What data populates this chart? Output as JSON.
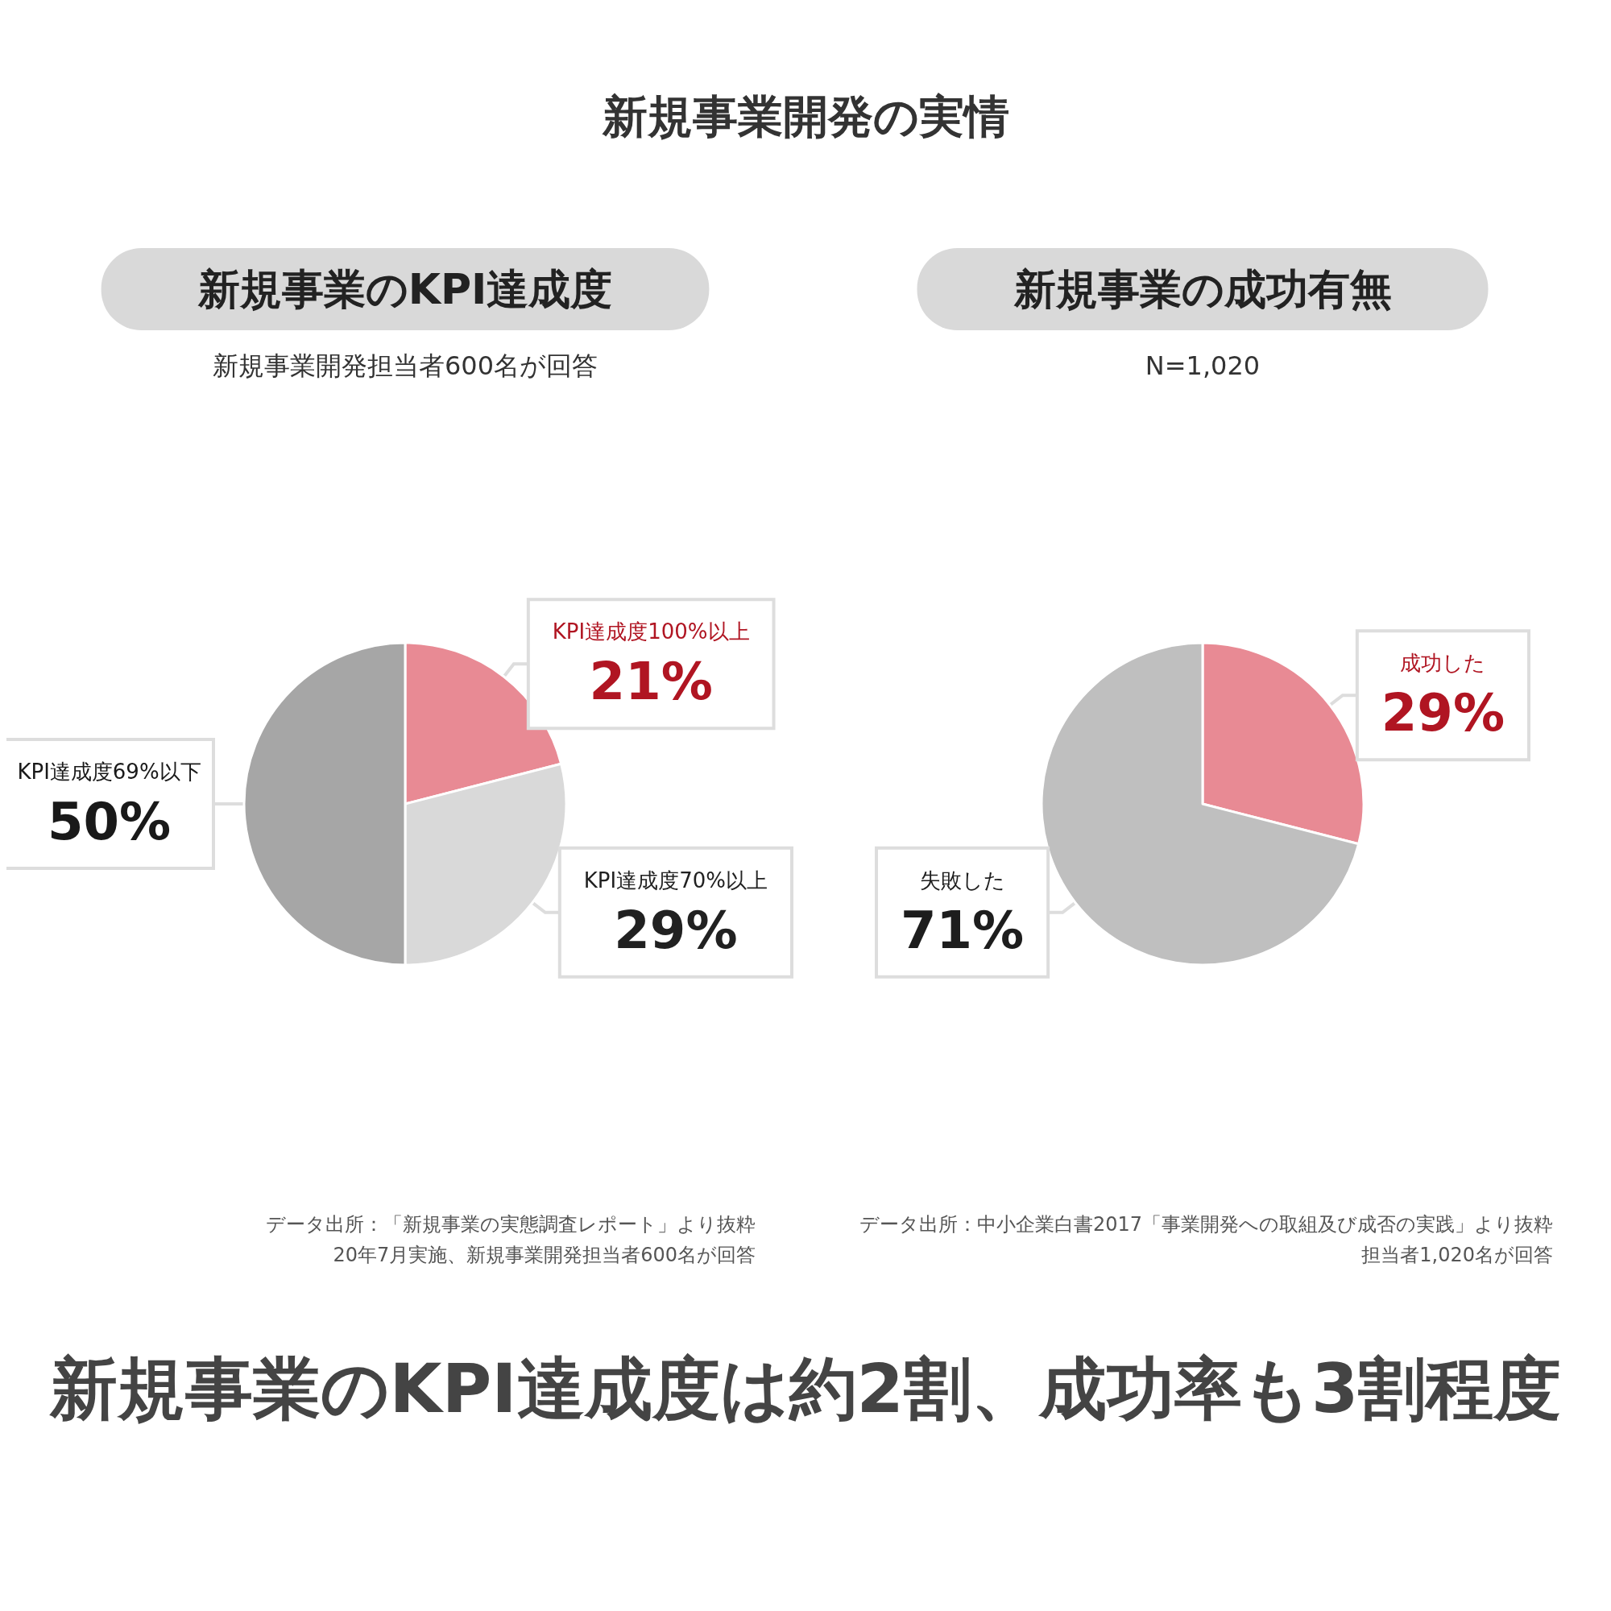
{
  "chart_data": [
    {
      "type": "pie",
      "title": "新規事業のKPI達成度",
      "subtitle": "新規事業開発担当者600名が回答",
      "categories": [
        "KPI達成度100%以上",
        "KPI達成度70%以上",
        "KPI達成度69%以下"
      ],
      "values": [
        21,
        29,
        50
      ],
      "value_labels": [
        "21%",
        "29%",
        "50%"
      ],
      "colors": [
        "#e88a94",
        "#d9d9d9",
        "#a6a6a6"
      ],
      "annotations": [
        "新規事業開発の実情",
        "データ出所：「新規事業の実態調査レポート」より抜粋",
        "20年7月実施、新規事業開発担当者600名が回答"
      ],
      "legend": false
    },
    {
      "type": "pie",
      "title": "新規事業の成功有無",
      "subtitle": "N=1,020",
      "categories": [
        "成功した",
        "失敗した"
      ],
      "values": [
        29,
        71
      ],
      "value_labels": [
        "29%",
        "71%"
      ],
      "colors": [
        "#e88a94",
        "#bfbfbf"
      ],
      "annotations": [
        "データ出所：中小企業白書2017「事業開発への取組及び成否の実践」より抜粋",
        "担当者1,020名が回答",
        "新規事業のKPI達成度は約2割、成功率も3割程度"
      ],
      "legend": false
    }
  ]
}
